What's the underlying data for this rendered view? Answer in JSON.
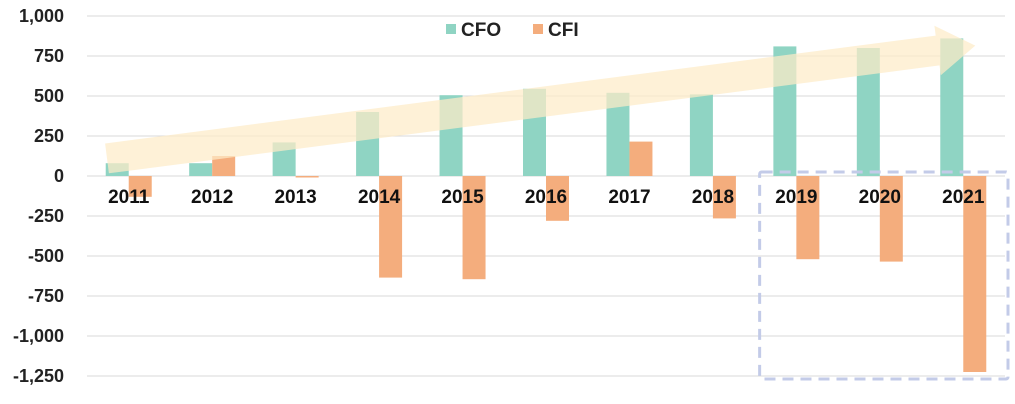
{
  "chart_data": {
    "type": "bar",
    "categories": [
      "2011",
      "2012",
      "2013",
      "2014",
      "2015",
      "2016",
      "2017",
      "2018",
      "2019",
      "2020",
      "2021"
    ],
    "series": [
      {
        "name": "CFO",
        "color": "#8fd4c3",
        "values": [
          80,
          80,
          210,
          400,
          505,
          545,
          520,
          510,
          810,
          800,
          860
        ]
      },
      {
        "name": "CFI",
        "color": "#f4ad7d",
        "values": [
          -130,
          125,
          -5,
          -635,
          -645,
          -280,
          215,
          -265,
          -520,
          -535,
          -1225
        ]
      }
    ],
    "yticks": [
      "1,000",
      "750",
      "500",
      "250",
      "0",
      "-250",
      "-500",
      "-750",
      "-1,000",
      "-1,250"
    ],
    "ytick_values": [
      1000,
      750,
      500,
      250,
      0,
      -250,
      -500,
      -750,
      -1000,
      -1250
    ],
    "ylim": [
      -1250,
      1000
    ],
    "grid": true,
    "legend_position": "top-center",
    "title": "",
    "xlabel": "",
    "ylabel": "",
    "annotations": {
      "trend_arrow": {
        "from_category": "2011",
        "to_category": "2021",
        "from_value": 110,
        "to_value": 860,
        "color": "#fdebc8"
      },
      "highlight_box": {
        "categories": [
          "2019",
          "2020",
          "2021"
        ],
        "style": "dashed",
        "color": "#c3cbe8"
      }
    }
  }
}
